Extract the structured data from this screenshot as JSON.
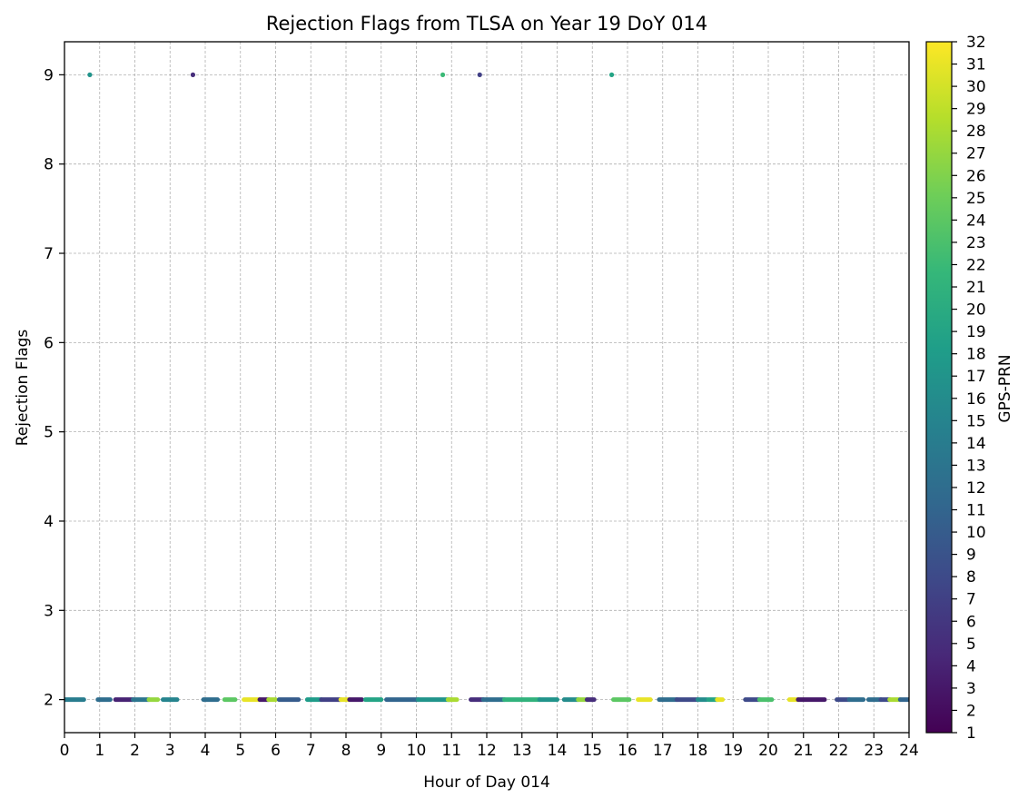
{
  "chart_data": {
    "type": "scatter",
    "title": "Rejection Flags from TLSA on Year 19 DoY 014",
    "xlabel": "Hour of Day 014",
    "ylabel": "Rejection Flags",
    "xlim": [
      0,
      24
    ],
    "ylim": [
      1.63,
      9.37
    ],
    "xticks": [
      0,
      1,
      2,
      3,
      4,
      5,
      6,
      7,
      8,
      9,
      10,
      11,
      12,
      13,
      14,
      15,
      16,
      17,
      18,
      19,
      20,
      21,
      22,
      23,
      24
    ],
    "yticks": [
      2,
      3,
      4,
      5,
      6,
      7,
      8,
      9
    ],
    "grid": true,
    "colorbar": {
      "label": "GPS-PRN",
      "min": 1,
      "max": 32,
      "ticks": [
        1,
        2,
        3,
        4,
        5,
        6,
        7,
        8,
        9,
        10,
        11,
        12,
        13,
        14,
        15,
        16,
        17,
        18,
        19,
        20,
        21,
        22,
        23,
        24,
        25,
        26,
        27,
        28,
        29,
        30,
        31,
        32
      ],
      "colormap": "viridis",
      "stops": [
        "#440154",
        "#482878",
        "#3e4989",
        "#31688e",
        "#26828e",
        "#1f9e89",
        "#35b779",
        "#6ece58",
        "#b5de2b",
        "#fde725"
      ]
    },
    "segments": [
      {
        "x_start": 0.0,
        "x_end": 0.55,
        "y": 2,
        "prn": 14
      },
      {
        "x_start": 0.95,
        "x_end": 1.3,
        "y": 2,
        "prn": 12
      },
      {
        "x_start": 1.45,
        "x_end": 1.95,
        "y": 2,
        "prn": 4
      },
      {
        "x_start": 1.95,
        "x_end": 2.4,
        "y": 2,
        "prn": 13
      },
      {
        "x_start": 2.4,
        "x_end": 2.65,
        "y": 2,
        "prn": 27
      },
      {
        "x_start": 2.8,
        "x_end": 3.2,
        "y": 2,
        "prn": 15
      },
      {
        "x_start": 3.95,
        "x_end": 4.35,
        "y": 2,
        "prn": 12
      },
      {
        "x_start": 4.55,
        "x_end": 4.85,
        "y": 2,
        "prn": 24
      },
      {
        "x_start": 5.1,
        "x_end": 5.55,
        "y": 2,
        "prn": 31
      },
      {
        "x_start": 5.55,
        "x_end": 5.8,
        "y": 2,
        "prn": 3
      },
      {
        "x_start": 5.8,
        "x_end": 6.0,
        "y": 2,
        "prn": 28
      },
      {
        "x_start": 6.1,
        "x_end": 6.65,
        "y": 2,
        "prn": 10
      },
      {
        "x_start": 6.9,
        "x_end": 7.3,
        "y": 2,
        "prn": 18
      },
      {
        "x_start": 7.3,
        "x_end": 7.85,
        "y": 2,
        "prn": 7
      },
      {
        "x_start": 7.85,
        "x_end": 8.1,
        "y": 2,
        "prn": 31
      },
      {
        "x_start": 8.1,
        "x_end": 8.45,
        "y": 2,
        "prn": 3
      },
      {
        "x_start": 8.55,
        "x_end": 9.0,
        "y": 2,
        "prn": 19
      },
      {
        "x_start": 9.15,
        "x_end": 10.05,
        "y": 2,
        "prn": 11
      },
      {
        "x_start": 10.05,
        "x_end": 10.95,
        "y": 2,
        "prn": 17
      },
      {
        "x_start": 10.9,
        "x_end": 11.15,
        "y": 2,
        "prn": 28
      },
      {
        "x_start": 11.55,
        "x_end": 11.9,
        "y": 2,
        "prn": 5
      },
      {
        "x_start": 11.9,
        "x_end": 12.5,
        "y": 2,
        "prn": 12
      },
      {
        "x_start": 12.5,
        "x_end": 13.5,
        "y": 2,
        "prn": 21
      },
      {
        "x_start": 13.5,
        "x_end": 14.0,
        "y": 2,
        "prn": 17
      },
      {
        "x_start": 14.2,
        "x_end": 14.6,
        "y": 2,
        "prn": 16
      },
      {
        "x_start": 14.6,
        "x_end": 14.85,
        "y": 2,
        "prn": 27
      },
      {
        "x_start": 14.85,
        "x_end": 15.05,
        "y": 2,
        "prn": 5
      },
      {
        "x_start": 15.6,
        "x_end": 16.05,
        "y": 2,
        "prn": 24
      },
      {
        "x_start": 16.3,
        "x_end": 16.65,
        "y": 2,
        "prn": 31
      },
      {
        "x_start": 16.9,
        "x_end": 17.4,
        "y": 2,
        "prn": 12
      },
      {
        "x_start": 17.4,
        "x_end": 18.0,
        "y": 2,
        "prn": 8
      },
      {
        "x_start": 18.0,
        "x_end": 18.25,
        "y": 2,
        "prn": 16
      },
      {
        "x_start": 18.3,
        "x_end": 18.55,
        "y": 2,
        "prn": 19
      },
      {
        "x_start": 18.55,
        "x_end": 18.7,
        "y": 2,
        "prn": 31
      },
      {
        "x_start": 19.35,
        "x_end": 19.75,
        "y": 2,
        "prn": 8
      },
      {
        "x_start": 19.75,
        "x_end": 20.1,
        "y": 2,
        "prn": 23
      },
      {
        "x_start": 20.6,
        "x_end": 20.85,
        "y": 2,
        "prn": 31
      },
      {
        "x_start": 20.85,
        "x_end": 21.6,
        "y": 2,
        "prn": 3
      },
      {
        "x_start": 21.95,
        "x_end": 22.3,
        "y": 2,
        "prn": 8
      },
      {
        "x_start": 22.3,
        "x_end": 22.7,
        "y": 2,
        "prn": 12
      },
      {
        "x_start": 22.85,
        "x_end": 23.2,
        "y": 2,
        "prn": 12
      },
      {
        "x_start": 23.2,
        "x_end": 23.45,
        "y": 2,
        "prn": 8
      },
      {
        "x_start": 23.45,
        "x_end": 23.75,
        "y": 2,
        "prn": 28
      },
      {
        "x_start": 23.75,
        "x_end": 24.0,
        "y": 2,
        "prn": 11
      }
    ],
    "points": [
      {
        "x": 0.72,
        "y": 9,
        "prn": 17
      },
      {
        "x": 3.65,
        "y": 9,
        "prn": 5
      },
      {
        "x": 10.75,
        "y": 9,
        "prn": 22
      },
      {
        "x": 11.8,
        "y": 9,
        "prn": 7
      },
      {
        "x": 15.55,
        "y": 9,
        "prn": 19
      }
    ]
  }
}
